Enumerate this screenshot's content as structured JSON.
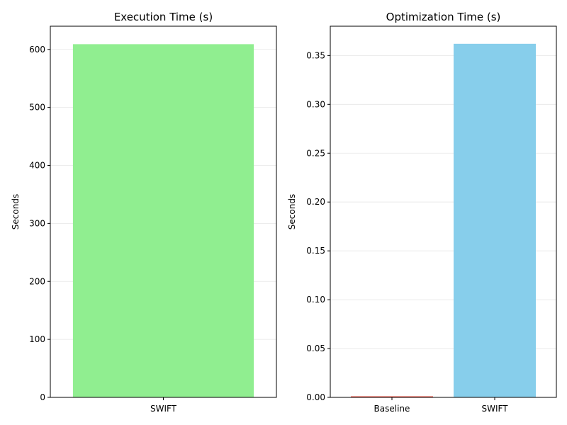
{
  "chart_data": [
    {
      "type": "bar",
      "title": "Execution Time (s)",
      "xlabel": "",
      "ylabel": "Seconds",
      "categories": [
        "SWIFT"
      ],
      "values": [
        609
      ],
      "colors": [
        "#90ee90"
      ],
      "ylim": [
        0,
        640
      ],
      "yticks": [
        0,
        100,
        200,
        300,
        400,
        500,
        600
      ],
      "ytick_labels": [
        "0",
        "100",
        "200",
        "300",
        "400",
        "500",
        "600"
      ],
      "grid": "y"
    },
    {
      "type": "bar",
      "title": "Optimization Time (s)",
      "xlabel": "",
      "ylabel": "Seconds",
      "categories": [
        "Baseline",
        "SWIFT"
      ],
      "values": [
        0.0008,
        0.362
      ],
      "colors": [
        "#e74c3c",
        "#87ceeb"
      ],
      "ylim": [
        0,
        0.38
      ],
      "yticks": [
        0,
        0.05,
        0.1,
        0.15,
        0.2,
        0.25,
        0.3,
        0.35
      ],
      "ytick_labels": [
        "0.00",
        "0.05",
        "0.10",
        "0.15",
        "0.20",
        "0.25",
        "0.30",
        "0.35"
      ],
      "grid": "y"
    }
  ]
}
